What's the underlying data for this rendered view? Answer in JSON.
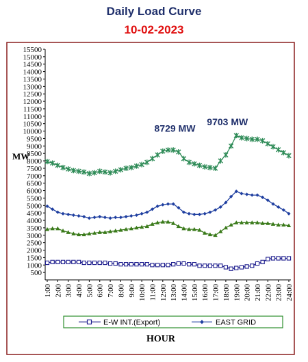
{
  "chart_data": {
    "type": "line",
    "title": "Daily Load Curve",
    "subtitle": "10-02-2023",
    "xlabel": "HOUR",
    "ylabel": "MW",
    "ylim": [
      0,
      15500
    ],
    "y_ticks": [
      "500",
      "1000",
      "1500",
      "2000",
      "2500",
      "3000",
      "3500",
      "4000",
      "4500",
      "5000",
      "5500",
      "6000",
      "6500",
      "7000",
      "7500",
      "8000",
      "8500",
      "9000",
      "9500",
      "10000",
      "10500",
      "11000",
      "11500",
      "12000",
      "12500",
      "13000",
      "13500",
      "14000",
      "14500",
      "15000",
      "15500"
    ],
    "categories": [
      "1:00",
      "2:00",
      "3:00",
      "4:00",
      "5:00",
      "6:00",
      "7:00",
      "8:00",
      "9:00",
      "10:00",
      "11:00",
      "12:00",
      "13:00",
      "14:00",
      "15:00",
      "16:00",
      "17:00",
      "18:00",
      "19:00",
      "20:00",
      "21:00",
      "22:00",
      "23:00",
      "24:00"
    ],
    "x": [
      1,
      1.5,
      2,
      2.5,
      3,
      3.5,
      4,
      4.5,
      5,
      5.5,
      6,
      6.5,
      7,
      7.5,
      8,
      8.5,
      9,
      9.5,
      10,
      10.5,
      11,
      11.5,
      12,
      12.5,
      13,
      13.5,
      14,
      14.5,
      15,
      15.5,
      16,
      16.5,
      17,
      17.5,
      18,
      18.5,
      19,
      19.5,
      20,
      20.5,
      21,
      21.5,
      22,
      22.5,
      23,
      23.5,
      24
    ],
    "series": [
      {
        "name": "",
        "color": "#2e8b57",
        "marker": "star",
        "values": [
          7950,
          7850,
          7700,
          7550,
          7450,
          7350,
          7300,
          7250,
          7150,
          7200,
          7300,
          7250,
          7200,
          7300,
          7400,
          7500,
          7550,
          7650,
          7750,
          7900,
          8150,
          8400,
          8650,
          8729,
          8729,
          8600,
          8150,
          7900,
          7800,
          7700,
          7600,
          7550,
          7500,
          8000,
          8400,
          9000,
          9703,
          9550,
          9500,
          9450,
          9450,
          9350,
          9150,
          8950,
          8750,
          8550,
          8350
        ]
      },
      {
        "name": "EAST GRID",
        "color": "#1f3fa0",
        "marker": "diamond",
        "values": [
          4950,
          4750,
          4550,
          4450,
          4400,
          4350,
          4300,
          4250,
          4150,
          4200,
          4250,
          4200,
          4150,
          4200,
          4200,
          4250,
          4300,
          4350,
          4450,
          4550,
          4750,
          4950,
          5050,
          5100,
          5100,
          4850,
          4550,
          4450,
          4400,
          4400,
          4450,
          4550,
          4700,
          4900,
          5200,
          5600,
          5950,
          5800,
          5750,
          5700,
          5700,
          5550,
          5350,
          5100,
          4900,
          4700,
          4450
        ]
      },
      {
        "name": "",
        "color": "#3a7a1a",
        "marker": "triangle",
        "values": [
          3400,
          3450,
          3450,
          3300,
          3200,
          3100,
          3050,
          3050,
          3100,
          3150,
          3200,
          3200,
          3250,
          3300,
          3350,
          3400,
          3450,
          3500,
          3550,
          3600,
          3750,
          3850,
          3900,
          3900,
          3800,
          3600,
          3450,
          3400,
          3400,
          3350,
          3150,
          3050,
          3000,
          3250,
          3500,
          3700,
          3850,
          3850,
          3850,
          3850,
          3850,
          3800,
          3800,
          3750,
          3700,
          3700,
          3650
        ]
      },
      {
        "name": "E-W INT.(Export)",
        "color": "#1a1a8c",
        "marker": "square",
        "values": [
          1150,
          1200,
          1200,
          1200,
          1200,
          1200,
          1200,
          1150,
          1150,
          1150,
          1150,
          1150,
          1100,
          1100,
          1050,
          1050,
          1050,
          1050,
          1050,
          1050,
          1000,
          1000,
          1000,
          1000,
          1050,
          1100,
          1100,
          1050,
          1050,
          950,
          950,
          950,
          950,
          950,
          850,
          750,
          800,
          850,
          900,
          950,
          1100,
          1200,
          1400,
          1450,
          1450,
          1450,
          1450
        ]
      }
    ],
    "annotations": [
      {
        "text": "8729 MW",
        "x": 11.2,
        "y": 9950
      },
      {
        "text": "9703 MW",
        "x": 16.2,
        "y": 10400
      }
    ],
    "grid": false,
    "legend_position": "bottom"
  }
}
